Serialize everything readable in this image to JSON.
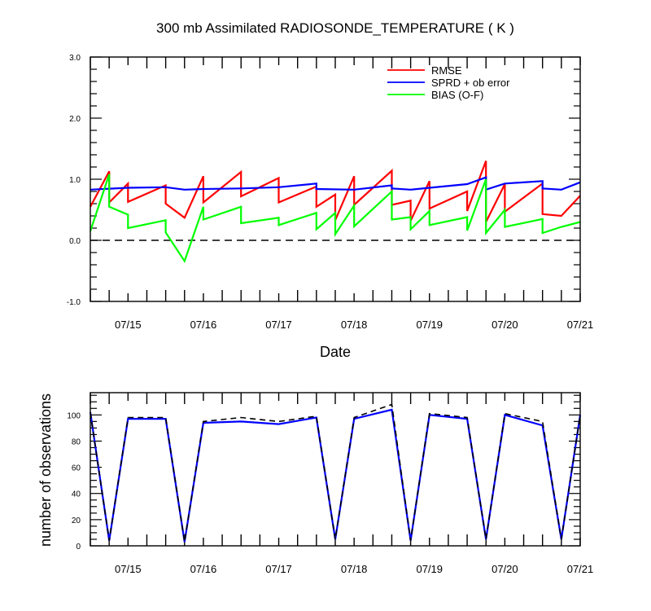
{
  "chart_data": [
    {
      "type": "line",
      "title": "300 mb Assimilated RADIOSONDE_TEMPERATURE ( K )",
      "xlabel": "Date",
      "ylabel": "",
      "x_ticks": [
        "07/15",
        "07/16",
        "07/17",
        "07/18",
        "07/19",
        "07/20",
        "07/21"
      ],
      "y_ticks": [
        "-1.0",
        "0.0",
        "1.0",
        "2.0",
        "3.0"
      ],
      "ylim": [
        -1.0,
        3.0
      ],
      "zero_line": "dashed",
      "legend_position": "top-right",
      "series": [
        {
          "name": "RMSE",
          "color": "#ff0000",
          "points": [
            [
              0.0,
              0.55
            ],
            [
              0.25,
              1.13
            ],
            [
              0.25,
              0.62
            ],
            [
              0.5,
              0.93
            ],
            [
              0.5,
              0.63
            ],
            [
              1.0,
              0.9
            ],
            [
              1.0,
              0.6
            ],
            [
              1.25,
              0.37
            ],
            [
              1.5,
              1.05
            ],
            [
              1.5,
              0.62
            ],
            [
              2.0,
              1.12
            ],
            [
              2.0,
              0.72
            ],
            [
              2.5,
              1.02
            ],
            [
              2.5,
              0.62
            ],
            [
              3.0,
              0.88
            ],
            [
              3.0,
              0.55
            ],
            [
              3.25,
              0.75
            ],
            [
              3.25,
              0.33
            ],
            [
              3.5,
              1.05
            ],
            [
              3.5,
              0.58
            ],
            [
              4.0,
              1.14
            ],
            [
              4.0,
              0.58
            ],
            [
              4.25,
              0.65
            ],
            [
              4.25,
              0.32
            ],
            [
              4.5,
              0.97
            ],
            [
              4.5,
              0.52
            ],
            [
              5.0,
              0.8
            ],
            [
              5.0,
              0.48
            ],
            [
              5.25,
              1.3
            ],
            [
              5.25,
              0.3
            ],
            [
              5.5,
              0.92
            ],
            [
              5.5,
              0.47
            ],
            [
              6.0,
              0.93
            ],
            [
              6.0,
              0.43
            ],
            [
              6.25,
              0.4
            ],
            [
              6.5,
              0.73
            ]
          ]
        },
        {
          "name": "SPRD + ob error",
          "color": "#0000ff",
          "points": [
            [
              0.0,
              0.83
            ],
            [
              0.5,
              0.86
            ],
            [
              1.0,
              0.87
            ],
            [
              1.25,
              0.83
            ],
            [
              1.5,
              0.84
            ],
            [
              2.0,
              0.85
            ],
            [
              2.5,
              0.87
            ],
            [
              3.0,
              0.93
            ],
            [
              3.0,
              0.84
            ],
            [
              3.5,
              0.83
            ],
            [
              4.0,
              0.9
            ],
            [
              4.0,
              0.85
            ],
            [
              4.25,
              0.83
            ],
            [
              4.5,
              0.86
            ],
            [
              5.0,
              0.92
            ],
            [
              5.25,
              1.03
            ],
            [
              5.25,
              0.83
            ],
            [
              5.5,
              0.93
            ],
            [
              6.0,
              0.97
            ],
            [
              6.0,
              0.85
            ],
            [
              6.25,
              0.83
            ],
            [
              6.5,
              0.95
            ]
          ]
        },
        {
          "name": "BIAS (O-F)",
          "color": "#00ff00",
          "points": [
            [
              0.0,
              0.15
            ],
            [
              0.25,
              1.08
            ],
            [
              0.25,
              0.55
            ],
            [
              0.5,
              0.42
            ],
            [
              0.5,
              0.2
            ],
            [
              1.0,
              0.33
            ],
            [
              1.0,
              0.13
            ],
            [
              1.25,
              -0.34
            ],
            [
              1.5,
              0.55
            ],
            [
              1.5,
              0.34
            ],
            [
              2.0,
              0.55
            ],
            [
              2.0,
              0.28
            ],
            [
              2.5,
              0.37
            ],
            [
              2.5,
              0.25
            ],
            [
              3.0,
              0.45
            ],
            [
              3.0,
              0.18
            ],
            [
              3.25,
              0.45
            ],
            [
              3.25,
              0.1
            ],
            [
              3.5,
              0.57
            ],
            [
              3.5,
              0.23
            ],
            [
              4.0,
              0.8
            ],
            [
              4.0,
              0.34
            ],
            [
              4.25,
              0.38
            ],
            [
              4.25,
              0.18
            ],
            [
              4.5,
              0.48
            ],
            [
              4.5,
              0.25
            ],
            [
              5.0,
              0.38
            ],
            [
              5.0,
              0.16
            ],
            [
              5.25,
              1.0
            ],
            [
              5.25,
              0.12
            ],
            [
              5.5,
              0.5
            ],
            [
              5.5,
              0.22
            ],
            [
              6.0,
              0.35
            ],
            [
              6.0,
              0.12
            ],
            [
              6.25,
              0.22
            ],
            [
              6.5,
              0.3
            ]
          ]
        }
      ]
    },
    {
      "type": "line",
      "title": "",
      "xlabel": "",
      "ylabel": "number of observations",
      "x_ticks": [
        "07/15",
        "07/16",
        "07/17",
        "07/18",
        "07/19",
        "07/20",
        "07/21"
      ],
      "y_ticks": [
        "0",
        "20",
        "40",
        "60",
        "80",
        "100"
      ],
      "ylim": [
        0,
        117
      ],
      "series": [
        {
          "name": "",
          "style": "solid",
          "color": "#0000ff",
          "points": [
            [
              0.0,
              102
            ],
            [
              0.25,
              4
            ],
            [
              0.5,
              97
            ],
            [
              1.0,
              97
            ],
            [
              1.25,
              3
            ],
            [
              1.5,
              94
            ],
            [
              2.0,
              95
            ],
            [
              2.5,
              93
            ],
            [
              3.0,
              98
            ],
            [
              3.25,
              5
            ],
            [
              3.5,
              97
            ],
            [
              4.0,
              104
            ],
            [
              4.25,
              4
            ],
            [
              4.5,
              100
            ],
            [
              5.0,
              97
            ],
            [
              5.25,
              5
            ],
            [
              5.5,
              100
            ],
            [
              6.0,
              92
            ],
            [
              6.25,
              5
            ],
            [
              6.5,
              100
            ]
          ]
        },
        {
          "name": "",
          "style": "dashed",
          "color": "#000000",
          "points": [
            [
              0.0,
              102
            ],
            [
              0.25,
              4
            ],
            [
              0.5,
              98
            ],
            [
              1.0,
              98
            ],
            [
              1.25,
              3
            ],
            [
              1.5,
              95
            ],
            [
              2.0,
              98
            ],
            [
              2.5,
              95
            ],
            [
              3.0,
              99
            ],
            [
              3.25,
              5
            ],
            [
              3.5,
              98
            ],
            [
              4.0,
              108
            ],
            [
              4.25,
              4
            ],
            [
              4.5,
              101
            ],
            [
              5.0,
              98
            ],
            [
              5.25,
              5
            ],
            [
              5.5,
              101
            ],
            [
              6.0,
              95
            ],
            [
              6.25,
              5
            ],
            [
              6.5,
              100
            ]
          ]
        }
      ]
    }
  ]
}
